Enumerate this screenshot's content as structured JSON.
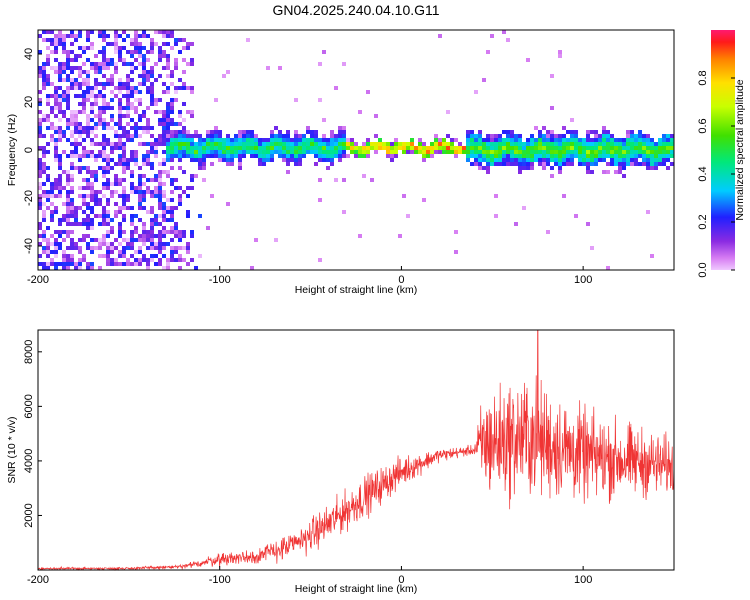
{
  "title": "GN04.2025.240.04.10.G11",
  "chart_data": [
    {
      "type": "heatmap",
      "xlabel": "Height of straight line (km)",
      "ylabel": "Frequency (Hz)",
      "xlim": [
        -200,
        150
      ],
      "ylim": [
        -50,
        50
      ],
      "xticks": [
        -200,
        -100,
        0,
        100
      ],
      "yticks": [
        -40,
        -20,
        0,
        20,
        40
      ],
      "colorbar": {
        "label": "Normalized spectral amplitude",
        "range": [
          0,
          1
        ],
        "ticks": [
          0.0,
          0.2,
          0.4,
          0.6,
          0.8
        ],
        "colormap": "rainbow (magenta-violet-blue-cyan-green-yellow-orange-red)"
      },
      "features": [
        {
          "x_range": [
            -200,
            -110
          ],
          "y_range": [
            -50,
            50
          ],
          "amplitude_range": [
            0.0,
            0.25
          ]
        },
        {
          "x_range": [
            -130,
            -30
          ],
          "y_center": 1,
          "y_halfwidth": 5,
          "amplitude_range": [
            0.15,
            0.6
          ]
        },
        {
          "x_range": [
            -30,
            35
          ],
          "y_center": 1,
          "y_halfwidth": 2,
          "amplitude_range": [
            0.5,
            1.0
          ]
        },
        {
          "x_range": [
            35,
            150
          ],
          "y_center": 0,
          "y_halfwidth": 6,
          "amplitude_range": [
            0.15,
            0.7
          ]
        }
      ]
    },
    {
      "type": "line",
      "xlabel": "Height of straight line (km)",
      "ylabel": "SNR (10 * v/v)",
      "xlim": [
        -200,
        150
      ],
      "ylim": [
        0,
        8800
      ],
      "xticks": [
        -200,
        -100,
        0,
        100
      ],
      "yticks": [
        2000,
        4000,
        6000,
        8000
      ],
      "color": "#f03434",
      "trend": [
        {
          "x": -200,
          "mean": 50,
          "spread": 60
        },
        {
          "x": -150,
          "mean": 60,
          "spread": 70
        },
        {
          "x": -120,
          "mean": 120,
          "spread": 120
        },
        {
          "x": -100,
          "mean": 400,
          "spread": 350
        },
        {
          "x": -80,
          "mean": 500,
          "spread": 450
        },
        {
          "x": -60,
          "mean": 900,
          "spread": 700
        },
        {
          "x": -40,
          "mean": 1700,
          "spread": 1000
        },
        {
          "x": -20,
          "mean": 2700,
          "spread": 1100
        },
        {
          "x": 0,
          "mean": 3600,
          "spread": 800
        },
        {
          "x": 20,
          "mean": 4200,
          "spread": 350
        },
        {
          "x": 40,
          "mean": 4400,
          "spread": 250
        },
        {
          "x": 45,
          "mean": 4600,
          "spread": 2800
        },
        {
          "x": 70,
          "mean": 4900,
          "spread": 3200
        },
        {
          "x": 100,
          "mean": 4200,
          "spread": 2400
        },
        {
          "x": 150,
          "mean": 3800,
          "spread": 1500
        }
      ],
      "peak": {
        "x": 75,
        "y": 8800
      }
    }
  ]
}
